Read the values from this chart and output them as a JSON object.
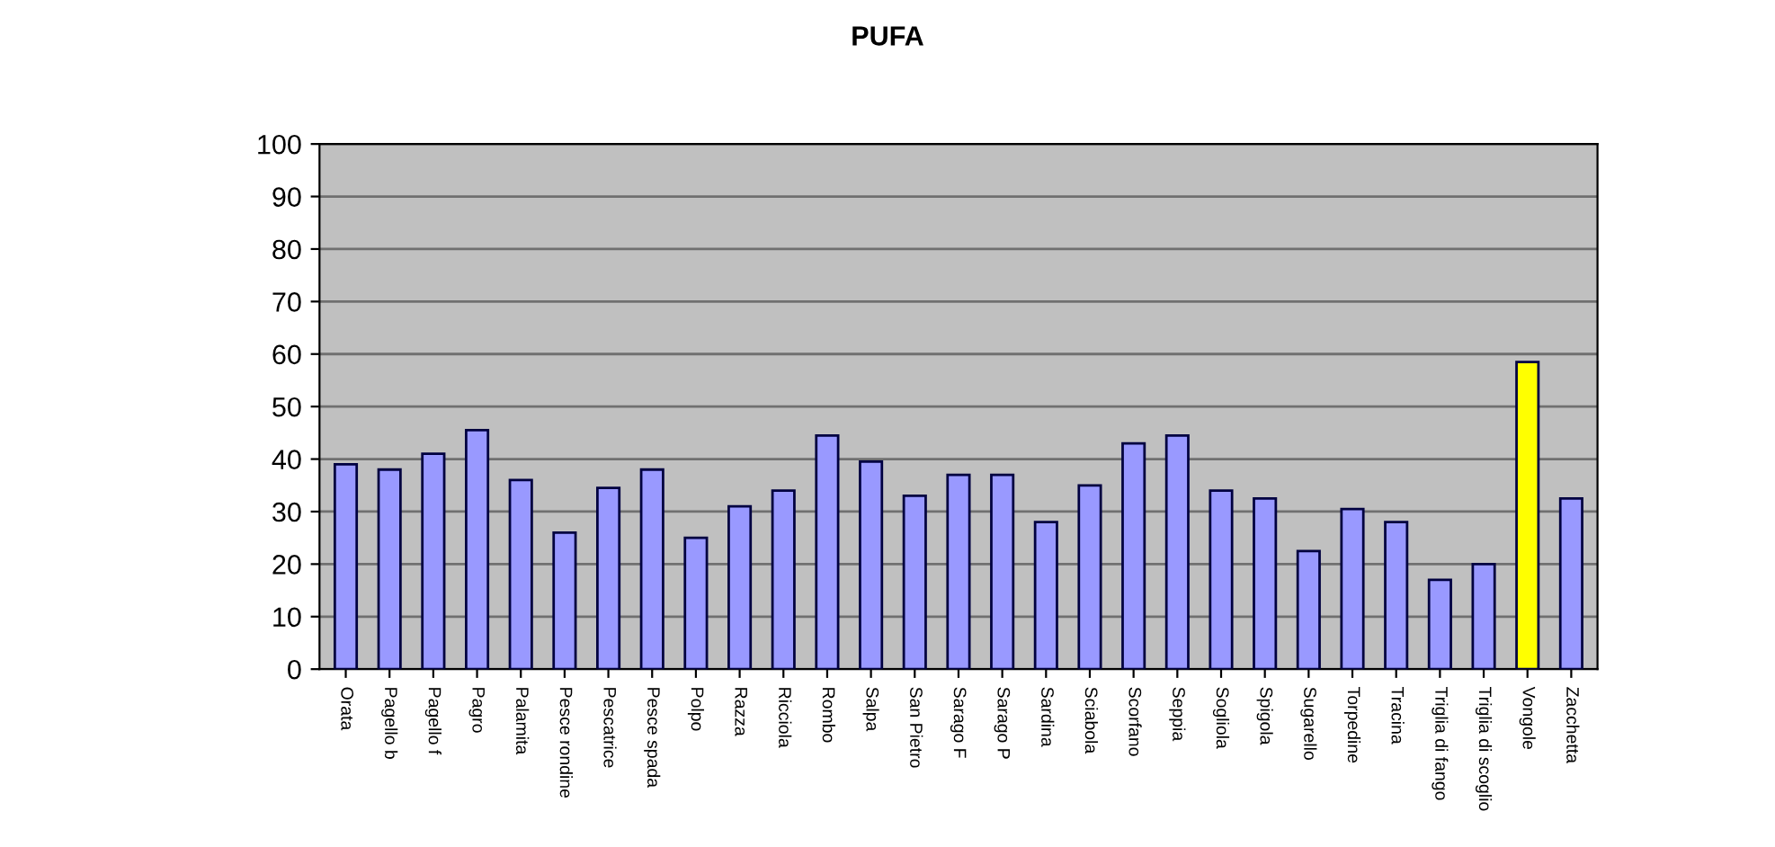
{
  "chart_data": {
    "type": "bar",
    "title": "PUFA",
    "categories": [
      "Orata",
      "Pagello b",
      "Pagello f",
      "Pagro",
      "Palamita",
      "Pesce rondine",
      "Pescatrice",
      "Pesce spada",
      "Polpo",
      "Razza",
      "Ricciola",
      "Rombo",
      "Salpa",
      "San Pietro",
      "Sarago F",
      "Sarago P",
      "Sardina",
      "Sciabola",
      "Scorfano",
      "Seppia",
      "Sogliola",
      "Spigola",
      "Sugarello",
      "Torpedine",
      "Tracina",
      "Triglia di fango",
      "Triglia di scoglio",
      "Vongole",
      "Zacchetta"
    ],
    "values": [
      39,
      38,
      41,
      45.5,
      36,
      26,
      34.5,
      38,
      25,
      31,
      34,
      44.5,
      39.5,
      33,
      37,
      37,
      28,
      35,
      43,
      44.5,
      34,
      32.5,
      22.5,
      30.5,
      28,
      17,
      20,
      58.5,
      32.5
    ],
    "colors": [
      "#9999ff",
      "#9999ff",
      "#9999ff",
      "#9999ff",
      "#9999ff",
      "#9999ff",
      "#9999ff",
      "#9999ff",
      "#9999ff",
      "#9999ff",
      "#9999ff",
      "#9999ff",
      "#9999ff",
      "#9999ff",
      "#9999ff",
      "#9999ff",
      "#9999ff",
      "#9999ff",
      "#9999ff",
      "#9999ff",
      "#9999ff",
      "#9999ff",
      "#9999ff",
      "#9999ff",
      "#9999ff",
      "#9999ff",
      "#9999ff",
      "#ffff00",
      "#9999ff"
    ],
    "ylim": [
      0,
      100
    ],
    "yticks": [
      0,
      10,
      20,
      30,
      40,
      50,
      60,
      70,
      80,
      90,
      100
    ],
    "grid": "y"
  }
}
